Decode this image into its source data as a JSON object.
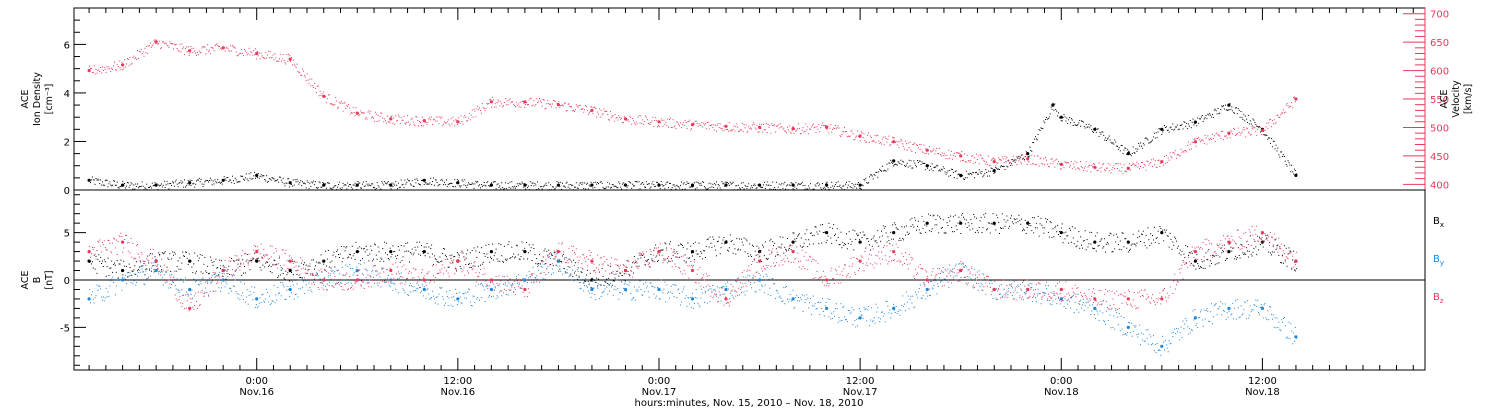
{
  "figure": {
    "xlabel": "hours:minutes, Nov. 15, 2010 – Nov. 18, 2010",
    "x_ticks": [
      {
        "hours": 24,
        "time": "0:00",
        "date": "Nov.16"
      },
      {
        "hours": 36,
        "time": "12:00",
        "date": "Nov.16"
      },
      {
        "hours": 48,
        "time": "0:00",
        "date": "Nov.17"
      },
      {
        "hours": 60,
        "time": "12:00",
        "date": "Nov.17"
      },
      {
        "hours": 72,
        "time": "0:00",
        "date": "Nov.18"
      },
      {
        "hours": 84,
        "time": "12:00",
        "date": "Nov.18"
      }
    ],
    "xlim_hours": [
      13.1,
      93.7
    ],
    "colors": {
      "black": "#000000",
      "red": "#e8385c",
      "blue": "#1f86d8"
    }
  },
  "chart_data": [
    {
      "type": "scatter",
      "panel": "top",
      "ylabel_left": [
        "ACE",
        "Ion Density",
        "[cm⁻³]"
      ],
      "ylabel_right": [
        "ACE",
        "Velocity",
        "[km/s]"
      ],
      "left_ticks": [
        "0",
        "2",
        "4",
        "6"
      ],
      "right_ticks": [
        "400",
        "450",
        "500",
        "550",
        "600",
        "650",
        "700"
      ],
      "ylim_left": [
        0,
        7.5
      ],
      "ylim_right": [
        390,
        710
      ],
      "series": [
        {
          "axis": "left",
          "color": "#000000",
          "x_hours": [
            14,
            16,
            18,
            20,
            22,
            24,
            26,
            28,
            30,
            32,
            34,
            36,
            38,
            40,
            42,
            44,
            46,
            48,
            50,
            52,
            54,
            56,
            58,
            60,
            62,
            64,
            66,
            68,
            70,
            71.5,
            72,
            74,
            76,
            78,
            80,
            82,
            84,
            86
          ],
          "values": [
            0.4,
            0.2,
            0.2,
            0.3,
            0.4,
            0.6,
            0.3,
            0.2,
            0.2,
            0.2,
            0.4,
            0.3,
            0.2,
            0.2,
            0.2,
            0.2,
            0.2,
            0.2,
            0.2,
            0.2,
            0.2,
            0.2,
            0.2,
            0.2,
            1.2,
            1.0,
            0.6,
            0.8,
            1.5,
            3.5,
            3.0,
            2.5,
            1.5,
            2.5,
            2.8,
            3.5,
            2.5,
            0.6
          ]
        },
        {
          "axis": "right",
          "color": "#e8385c",
          "x_hours": [
            14,
            16,
            18,
            20,
            22,
            24,
            26,
            28,
            30,
            32,
            34,
            36,
            38,
            40,
            42,
            44,
            46,
            48,
            50,
            52,
            54,
            56,
            58,
            60,
            62,
            64,
            66,
            68,
            70,
            72,
            74,
            76,
            78,
            80,
            82,
            84,
            86
          ],
          "values": [
            600,
            610,
            650,
            635,
            640,
            630,
            620,
            555,
            525,
            515,
            512,
            510,
            545,
            545,
            540,
            530,
            515,
            510,
            505,
            502,
            500,
            498,
            500,
            485,
            475,
            460,
            450,
            440,
            445,
            435,
            430,
            428,
            440,
            475,
            490,
            495,
            550
          ]
        }
      ]
    },
    {
      "type": "scatter",
      "panel": "bottom",
      "ylabel_left": [
        "ACE",
        "B",
        "[nT]"
      ],
      "left_ticks": [
        "-5",
        "0",
        "5"
      ],
      "ylim": [
        -9.5,
        9.5
      ],
      "zero_line": true,
      "series": [
        {
          "name": "Bx",
          "label": "B",
          "subscript": "x",
          "color": "#000000",
          "x_hours": [
            14,
            16,
            18,
            20,
            22,
            24,
            26,
            28,
            30,
            32,
            34,
            36,
            38,
            40,
            42,
            44,
            46,
            48,
            50,
            52,
            54,
            56,
            58,
            60,
            62,
            64,
            66,
            68,
            70,
            72,
            74,
            76,
            78,
            80,
            82,
            84,
            86
          ],
          "values": [
            2,
            1,
            2,
            2,
            1,
            2,
            1,
            2,
            3,
            3,
            3,
            2,
            3,
            3,
            2,
            0,
            1,
            3,
            3,
            4,
            3,
            4,
            5,
            4,
            5,
            6,
            6,
            6,
            6,
            5,
            4,
            4,
            5,
            2,
            3,
            4,
            2
          ]
        },
        {
          "name": "By",
          "label": "B",
          "subscript": "y",
          "color": "#1f86d8",
          "x_hours": [
            14,
            16,
            18,
            20,
            22,
            24,
            26,
            28,
            30,
            32,
            34,
            36,
            38,
            40,
            42,
            44,
            46,
            48,
            50,
            52,
            54,
            56,
            58,
            60,
            62,
            64,
            66,
            68,
            70,
            72,
            74,
            76,
            78,
            80,
            82,
            84,
            86
          ],
          "values": [
            -2,
            0,
            1,
            -1,
            0,
            -2,
            -1,
            0,
            1,
            0,
            -1,
            -2,
            -1,
            0,
            2,
            -1,
            -1,
            -1,
            -2,
            -1,
            0,
            -2,
            -3,
            -4,
            -3,
            -1,
            1,
            -1,
            -1,
            -2,
            -3,
            -5,
            -7,
            -4,
            -3,
            -3,
            -6
          ]
        },
        {
          "name": "Bz",
          "label": "B",
          "subscript": "z",
          "color": "#e8385c",
          "x_hours": [
            14,
            16,
            18,
            20,
            22,
            24,
            26,
            28,
            30,
            32,
            34,
            36,
            38,
            40,
            42,
            44,
            46,
            48,
            50,
            52,
            54,
            56,
            58,
            60,
            62,
            64,
            66,
            68,
            70,
            72,
            74,
            76,
            78,
            80,
            82,
            84,
            86
          ],
          "values": [
            3,
            4,
            2,
            -3,
            1,
            3,
            2,
            0,
            0,
            1,
            0,
            2,
            0,
            -1,
            3,
            2,
            1,
            3,
            1,
            -2,
            2,
            3,
            0,
            2,
            3,
            0,
            1,
            -1,
            -1,
            -1,
            -2,
            -2,
            -2,
            3,
            4,
            5,
            2
          ]
        }
      ]
    }
  ]
}
